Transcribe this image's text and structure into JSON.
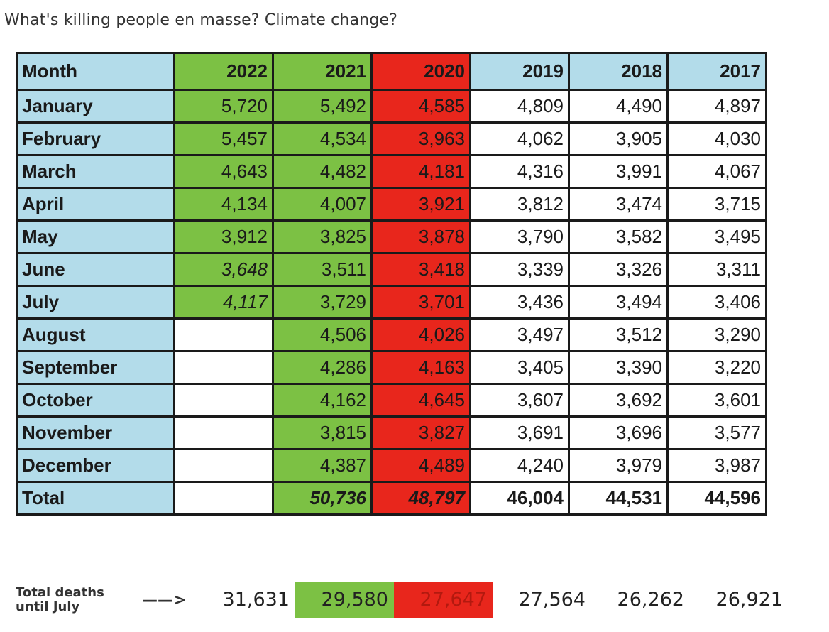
{
  "caption": "What's killing people en masse? Climate change?",
  "header": {
    "month": "Month",
    "years": [
      "2022",
      "2021",
      "2020",
      "2019",
      "2018",
      "2017"
    ]
  },
  "rows": [
    {
      "month": "January",
      "values": [
        "5,720",
        "5,492",
        "4,585",
        "4,809",
        "4,490",
        "4,897"
      ]
    },
    {
      "month": "February",
      "values": [
        "5,457",
        "4,534",
        "3,963",
        "4,062",
        "3,905",
        "4,030"
      ]
    },
    {
      "month": "March",
      "values": [
        "4,643",
        "4,482",
        "4,181",
        "4,316",
        "3,991",
        "4,067"
      ]
    },
    {
      "month": "April",
      "values": [
        "4,134",
        "4,007",
        "3,921",
        "3,812",
        "3,474",
        "3,715"
      ]
    },
    {
      "month": "May",
      "values": [
        "3,912",
        "3,825",
        "3,878",
        "3,790",
        "3,582",
        "3,495"
      ]
    },
    {
      "month": "June",
      "values": [
        "3,648",
        "3,511",
        "3,418",
        "3,339",
        "3,326",
        "3,311"
      ]
    },
    {
      "month": "July",
      "values": [
        "4,117",
        "3,729",
        "3,701",
        "3,436",
        "3,494",
        "3,406"
      ]
    },
    {
      "month": "August",
      "values": [
        "",
        "4,506",
        "4,026",
        "3,497",
        "3,512",
        "3,290"
      ]
    },
    {
      "month": "September",
      "values": [
        "",
        "4,286",
        "4,163",
        "3,405",
        "3,390",
        "3,220"
      ]
    },
    {
      "month": "October",
      "values": [
        "",
        "4,162",
        "4,645",
        "3,607",
        "3,692",
        "3,601"
      ]
    },
    {
      "month": "November",
      "values": [
        "",
        "3,815",
        "3,827",
        "3,691",
        "3,696",
        "3,577"
      ]
    },
    {
      "month": "December",
      "values": [
        "",
        "4,387",
        "4,489",
        "4,240",
        "3,979",
        "3,987"
      ]
    }
  ],
  "total": {
    "label": "Total",
    "values": [
      "",
      "50,736",
      "48,797",
      "46,004",
      "44,531",
      "44,596"
    ]
  },
  "footer": {
    "label_line1": "Total deaths",
    "label_line2": "until July",
    "arrow": "——>",
    "values": [
      "31,631",
      "29,580",
      "27,647",
      "27,564",
      "26,262",
      "26,921"
    ]
  },
  "colors": {
    "green": "#7cc144",
    "red": "#e8261c",
    "blue": "#b3dcea"
  }
}
